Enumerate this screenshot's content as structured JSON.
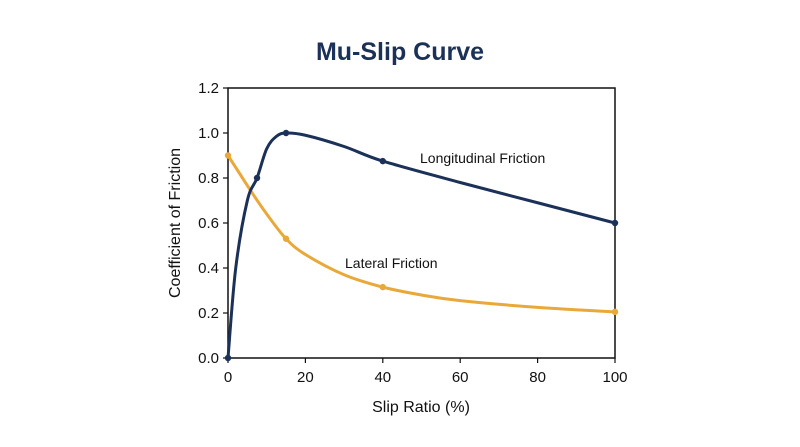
{
  "chart_data": {
    "type": "line",
    "title": "Mu-Slip Curve",
    "xlabel": "Slip Ratio (%)",
    "ylabel": "Coefficient of Friction",
    "xlim": [
      0,
      100
    ],
    "ylim": [
      0,
      1.2
    ],
    "x_ticks": [
      0,
      20,
      40,
      60,
      80,
      100
    ],
    "y_ticks": [
      0.0,
      0.2,
      0.4,
      0.6,
      0.8,
      1.0,
      1.2
    ],
    "grid": false,
    "series": [
      {
        "name": "Longitudinal Friction",
        "color": "#1b3157",
        "markers": [
          [
            0,
            0.0
          ],
          [
            7.5,
            0.8
          ],
          [
            15,
            1.0
          ],
          [
            40,
            0.875
          ],
          [
            100,
            0.6
          ]
        ],
        "curve": [
          [
            0,
            0.0
          ],
          [
            2,
            0.4
          ],
          [
            5,
            0.7
          ],
          [
            7.5,
            0.8
          ],
          [
            10,
            0.93
          ],
          [
            12.5,
            0.985
          ],
          [
            15,
            1.0
          ],
          [
            20,
            0.99
          ],
          [
            30,
            0.94
          ],
          [
            40,
            0.875
          ],
          [
            60,
            0.78
          ],
          [
            80,
            0.69
          ],
          [
            100,
            0.6
          ]
        ]
      },
      {
        "name": "Lateral Friction",
        "color": "#e9a93a",
        "markers": [
          [
            0,
            0.9
          ],
          [
            15,
            0.53
          ],
          [
            40,
            0.315
          ],
          [
            100,
            0.205
          ]
        ],
        "curve": [
          [
            0,
            0.9
          ],
          [
            3,
            0.82
          ],
          [
            6,
            0.74
          ],
          [
            10,
            0.64
          ],
          [
            15,
            0.53
          ],
          [
            20,
            0.46
          ],
          [
            30,
            0.37
          ],
          [
            40,
            0.315
          ],
          [
            50,
            0.28
          ],
          [
            60,
            0.255
          ],
          [
            80,
            0.225
          ],
          [
            100,
            0.205
          ]
        ]
      }
    ]
  }
}
